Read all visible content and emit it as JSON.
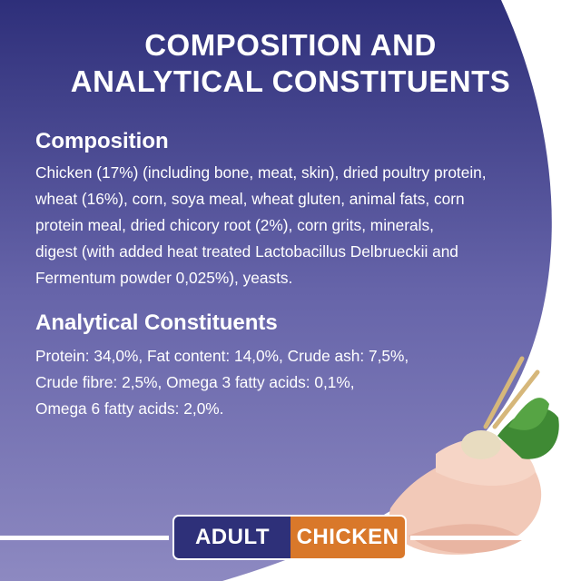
{
  "title_lines": [
    "COMPOSITION AND",
    "ANALYTICAL CONSTITUENTS"
  ],
  "composition": {
    "heading": "Composition",
    "lines": [
      "Chicken (17%) (including bone, meat, skin), dried poultry protein,",
      "wheat (16%), corn, soya meal, wheat gluten, animal fats, corn",
      "protein meal, dried chicory root (2%), corn grits, minerals,",
      "digest (with added heat treated Lactobacillus Delbrueckii and",
      "Fermentum powder 0,025%), yeasts."
    ]
  },
  "analytical": {
    "heading": "Analytical Constituents",
    "lines": [
      "Protein: 34,0%, Fat content: 14,0%, Crude ash: 7,5%,",
      "Crude fibre: 2,5%, Omega 3 fatty acids: 0,1%,",
      "Omega 6 fatty acids: 2,0%."
    ]
  },
  "badge": {
    "left": "ADULT",
    "right": "CHICKEN"
  },
  "colors": {
    "gradient_top": "#2e2f7a",
    "gradient_bottom": "#8d89c1",
    "badge_left": "#2e3079",
    "badge_right": "#d9782a"
  },
  "images": [
    "chicken-fillet",
    "chicory-root",
    "wheat-ears"
  ]
}
